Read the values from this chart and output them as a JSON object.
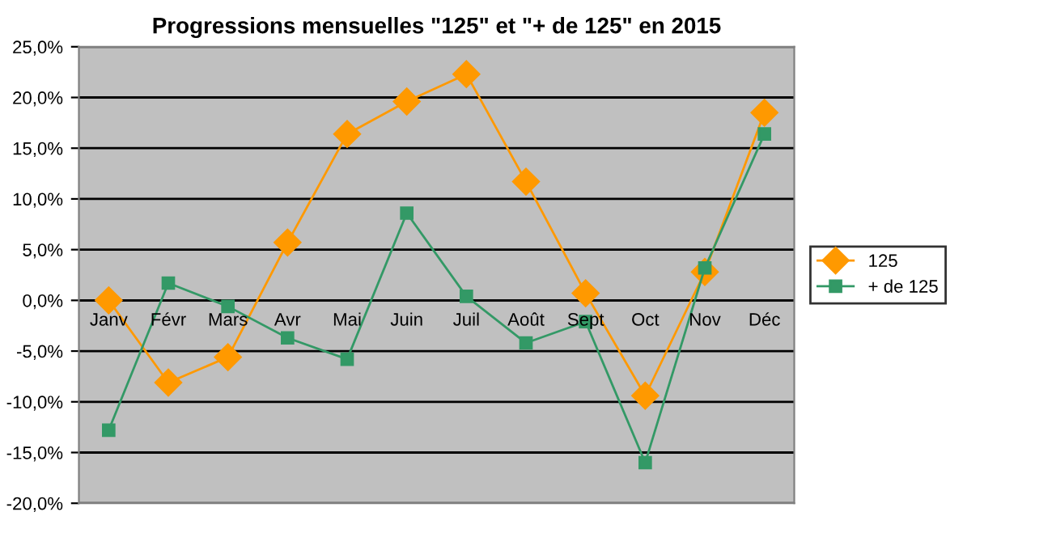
{
  "chart_data": {
    "type": "line",
    "title": "Progressions mensuelles \"125\" et \"+ de 125\" en 2015",
    "categories": [
      "Janv",
      "Févr",
      "Mars",
      "Avr",
      "Mai",
      "Juin",
      "Juil",
      "Août",
      "Sept",
      "Oct",
      "Nov",
      "Déc"
    ],
    "series": [
      {
        "name": "125",
        "color": "#ff9900",
        "marker": "diamond",
        "values": [
          0.0,
          -8.1,
          -5.6,
          5.7,
          16.4,
          19.6,
          22.3,
          11.7,
          0.7,
          -9.4,
          2.8,
          18.5
        ]
      },
      {
        "name": "+ de 125",
        "color": "#339966",
        "marker": "square",
        "values": [
          -12.8,
          1.7,
          -0.6,
          -3.7,
          -5.8,
          8.6,
          0.4,
          -4.2,
          -2.1,
          -16.0,
          3.2,
          16.4
        ]
      }
    ],
    "ylim": [
      -20,
      25
    ],
    "yticks": [
      {
        "value": -20,
        "label": "-20,0%"
      },
      {
        "value": -15,
        "label": "-15,0%"
      },
      {
        "value": -10,
        "label": "-10,0%"
      },
      {
        "value": -5,
        "label": "-5,0%"
      },
      {
        "value": 0,
        "label": "0,0%"
      },
      {
        "value": 5,
        "label": "5,0%"
      },
      {
        "value": 10,
        "label": "10,0%"
      },
      {
        "value": 15,
        "label": "15,0%"
      },
      {
        "value": 20,
        "label": "20,0%"
      },
      {
        "value": 25,
        "label": "25,0%"
      }
    ],
    "grid": "y",
    "legend": "right"
  }
}
